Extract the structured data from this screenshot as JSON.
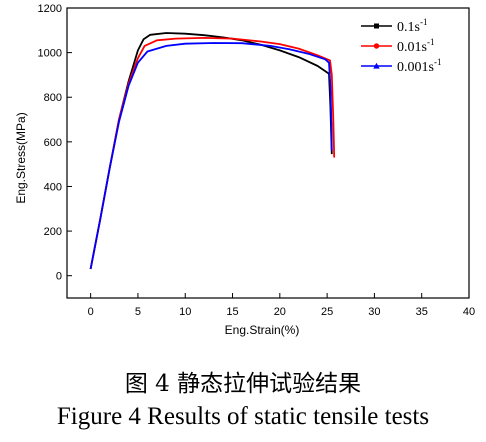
{
  "chart_data": {
    "type": "line",
    "xlabel": "Eng.Strain(%)",
    "ylabel": "Eng.Stress(MPa)",
    "xlim": [
      -2.5,
      40
    ],
    "ylim": [
      -100,
      1200
    ],
    "xticks": [
      0,
      5,
      10,
      15,
      20,
      25,
      30,
      35,
      40
    ],
    "yticks": [
      0,
      200,
      400,
      600,
      800,
      1000,
      1200
    ],
    "legend_position": "top-right",
    "series": [
      {
        "name": "0.1s-1",
        "name_base": "0.1s",
        "name_sup": "-1",
        "color": "#000000",
        "marker": "square",
        "points": [
          [
            0,
            30
          ],
          [
            1,
            250
          ],
          [
            2,
            480
          ],
          [
            3,
            700
          ],
          [
            4,
            870
          ],
          [
            5,
            1010
          ],
          [
            5.6,
            1060
          ],
          [
            6.3,
            1080
          ],
          [
            8,
            1088
          ],
          [
            10,
            1085
          ],
          [
            12,
            1078
          ],
          [
            14,
            1068
          ],
          [
            16,
            1055
          ],
          [
            18,
            1035
          ],
          [
            20,
            1010
          ],
          [
            22,
            980
          ],
          [
            24,
            940
          ],
          [
            25.2,
            905
          ],
          [
            25.35,
            760
          ],
          [
            25.45,
            600
          ],
          [
            25.5,
            545
          ]
        ]
      },
      {
        "name": "0.01s-1",
        "name_base": "0.01s",
        "name_sup": "-1",
        "color": "#ff0000",
        "marker": "circle",
        "points": [
          [
            0,
            30
          ],
          [
            1,
            250
          ],
          [
            2,
            480
          ],
          [
            3,
            700
          ],
          [
            4,
            860
          ],
          [
            5,
            975
          ],
          [
            5.7,
            1030
          ],
          [
            7,
            1055
          ],
          [
            9,
            1063
          ],
          [
            12,
            1066
          ],
          [
            15,
            1063
          ],
          [
            18,
            1050
          ],
          [
            20,
            1038
          ],
          [
            22,
            1018
          ],
          [
            24,
            988
          ],
          [
            25.3,
            965
          ],
          [
            25.5,
            900
          ],
          [
            25.65,
            700
          ],
          [
            25.75,
            530
          ]
        ]
      },
      {
        "name": "0.001s-1",
        "name_base": "0.001s",
        "name_sup": "-1",
        "color": "#0000ff",
        "marker": "triangle",
        "points": [
          [
            0,
            30
          ],
          [
            1,
            250
          ],
          [
            2,
            480
          ],
          [
            3,
            690
          ],
          [
            4,
            850
          ],
          [
            5,
            955
          ],
          [
            6,
            1005
          ],
          [
            8,
            1030
          ],
          [
            10,
            1040
          ],
          [
            13,
            1043
          ],
          [
            16,
            1042
          ],
          [
            19,
            1030
          ],
          [
            21,
            1015
          ],
          [
            23,
            995
          ],
          [
            24.8,
            970
          ],
          [
            25.2,
            955
          ],
          [
            25.35,
            850
          ],
          [
            25.45,
            680
          ],
          [
            25.5,
            560
          ]
        ]
      }
    ]
  },
  "caption": {
    "chinese": "图 4 静态拉伸试验结果",
    "english": "Figure 4 Results of static tensile tests"
  }
}
